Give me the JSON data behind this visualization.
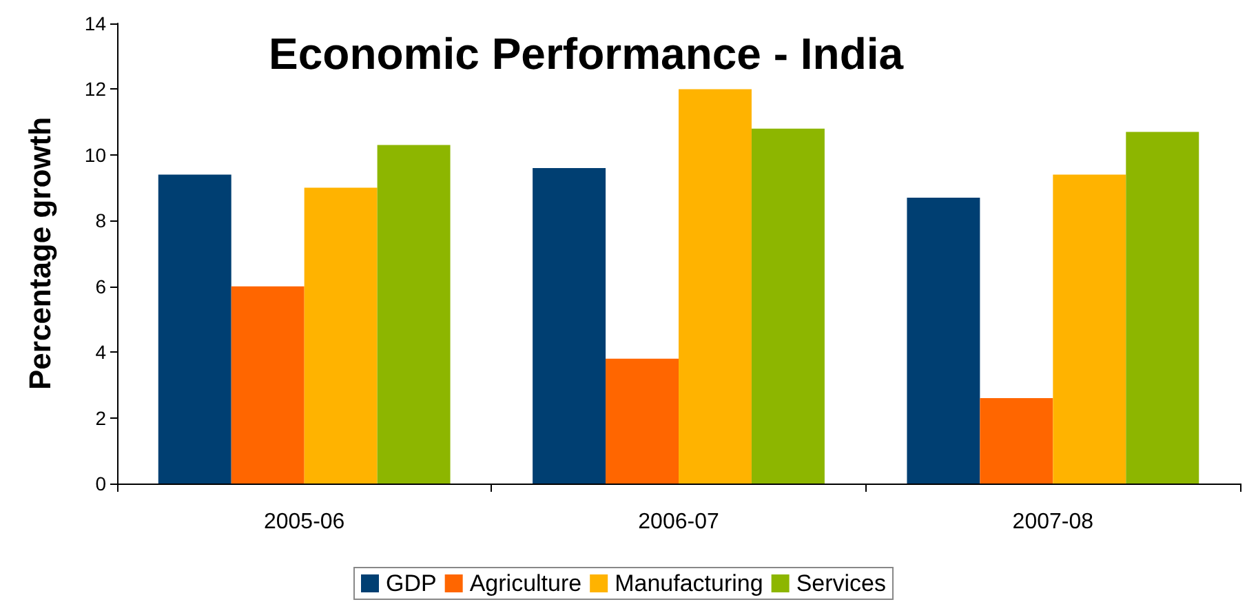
{
  "chart_data": {
    "type": "bar",
    "title": "Economic Performance - India",
    "ylabel": "Percentage growth",
    "categories": [
      "2005-06",
      "2006-07",
      "2007-08"
    ],
    "series": [
      {
        "name": "GDP",
        "color": "#003f72",
        "values": [
          9.4,
          9.6,
          8.7
        ]
      },
      {
        "name": "Agriculture",
        "color": "#ff6600",
        "values": [
          6.0,
          3.8,
          2.6
        ]
      },
      {
        "name": "Manufacturing",
        "color": "#ffb300",
        "values": [
          9.0,
          12.0,
          9.4
        ]
      },
      {
        "name": "Services",
        "color": "#8db600",
        "values": [
          10.3,
          10.8,
          10.7
        ]
      }
    ],
    "ylim": [
      0,
      14
    ],
    "yticks": [
      0,
      2,
      4,
      6,
      8,
      10,
      12,
      14
    ],
    "grid": false,
    "legend": "bottom"
  }
}
